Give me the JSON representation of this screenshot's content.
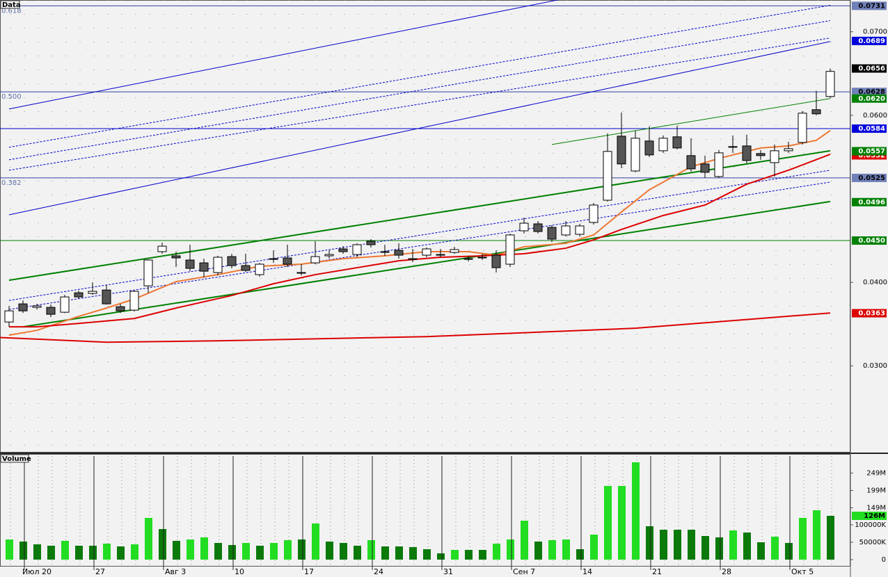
{
  "chart_data": [
    {
      "type": "candlestick",
      "title": "Data",
      "categories": [
        null,
        "Июл 20",
        null,
        null,
        null,
        null,
        "27",
        null,
        null,
        null,
        null,
        "Авг 3",
        null,
        null,
        null,
        null,
        "10",
        null,
        null,
        null,
        null,
        "17",
        null,
        null,
        null,
        null,
        "24",
        null,
        null,
        null,
        null,
        "31",
        null,
        null,
        null,
        null,
        "Сен 7",
        null,
        null,
        null,
        null,
        "14",
        null,
        null,
        null,
        null,
        "21",
        null,
        null,
        null,
        null,
        "28",
        null,
        null,
        null,
        null,
        "Окт 5",
        null,
        null,
        null
      ],
      "open": [
        0.03525,
        0.03742,
        0.037,
        0.037,
        0.03642,
        0.03875,
        0.03867,
        0.03908,
        0.03708,
        0.03667,
        0.03958,
        0.04367,
        0.04317,
        0.04267,
        0.04233,
        0.04117,
        0.04308,
        0.042,
        0.04092,
        0.04275,
        0.04292,
        0.04117,
        0.04233,
        0.04317,
        0.044,
        0.04333,
        0.04492,
        0.04367,
        0.04383,
        0.04283,
        0.04325,
        0.04333,
        0.04358,
        0.04283,
        0.043,
        0.04325,
        0.04217,
        0.04617,
        0.047,
        0.04658,
        0.04567,
        0.04575,
        0.04717,
        0.04983,
        0.0575,
        0.05333,
        0.05692,
        0.05575,
        0.05742,
        0.05517,
        0.05417,
        0.05267,
        0.05625,
        0.05633,
        0.05542,
        0.05433,
        0.05575,
        0.05675,
        0.06067,
        0.06225
      ],
      "high": [
        0.03717,
        0.03783,
        0.03742,
        0.03733,
        0.0385,
        0.039,
        0.04,
        0.03967,
        0.03742,
        0.039,
        0.04275,
        0.04475,
        0.04367,
        0.0445,
        0.04283,
        0.04317,
        0.04342,
        0.04342,
        0.04233,
        0.04383,
        0.0445,
        0.04217,
        0.04492,
        0.04383,
        0.04433,
        0.04467,
        0.04517,
        0.0445,
        0.04467,
        0.044,
        0.04417,
        0.044,
        0.04425,
        0.04317,
        0.04342,
        0.04383,
        0.04583,
        0.04775,
        0.04733,
        0.04683,
        0.04733,
        0.047,
        0.0495,
        0.05783,
        0.06033,
        0.05817,
        0.05867,
        0.05758,
        0.05875,
        0.05725,
        0.05517,
        0.05583,
        0.05758,
        0.05767,
        0.05583,
        0.0565,
        0.05683,
        0.0605,
        0.06292,
        0.06558
      ],
      "low": [
        0.03467,
        0.03633,
        0.03675,
        0.03583,
        0.03633,
        0.038,
        0.0385,
        0.03733,
        0.03633,
        0.0365,
        0.03875,
        0.04342,
        0.04183,
        0.04133,
        0.04058,
        0.04083,
        0.04167,
        0.04125,
        0.04067,
        0.04233,
        0.04183,
        0.04083,
        0.04217,
        0.04283,
        0.04342,
        0.043,
        0.04417,
        0.04317,
        0.04283,
        0.04242,
        0.043,
        0.043,
        0.04342,
        0.0425,
        0.04267,
        0.04117,
        0.04183,
        0.04583,
        0.04583,
        0.04483,
        0.0455,
        0.0455,
        0.04692,
        0.04967,
        0.05367,
        0.05317,
        0.055,
        0.0555,
        0.05592,
        0.05325,
        0.0525,
        0.0525,
        0.0555,
        0.05425,
        0.05467,
        0.05267,
        0.0555,
        0.0565,
        0.06,
        0.06208
      ],
      "close": [
        0.03658,
        0.03658,
        0.03717,
        0.03617,
        0.03825,
        0.03825,
        0.03892,
        0.03742,
        0.03658,
        0.03892,
        0.04267,
        0.04433,
        0.04292,
        0.04167,
        0.04133,
        0.043,
        0.042,
        0.04142,
        0.04217,
        0.04283,
        0.04217,
        0.04117,
        0.04308,
        0.04333,
        0.04367,
        0.0445,
        0.0445,
        0.04367,
        0.04325,
        0.04283,
        0.044,
        0.04333,
        0.04392,
        0.04283,
        0.043,
        0.04175,
        0.04567,
        0.04708,
        0.04608,
        0.04517,
        0.04675,
        0.04675,
        0.04925,
        0.05567,
        0.05417,
        0.05725,
        0.05525,
        0.05725,
        0.05608,
        0.05358,
        0.05317,
        0.0555,
        0.05617,
        0.05458,
        0.05517,
        0.05575,
        0.056,
        0.06025,
        0.06017,
        0.06525
      ],
      "up_color": "#ffffff",
      "down_color": "#555555",
      "ylim": [
        0.0197,
        0.0738
      ],
      "yticks": [
        {
          "value": 0.07,
          "label": "0.0700"
        },
        {
          "value": 0.06,
          "label": "0.0600"
        },
        {
          "value": 0.04,
          "label": "0.0400"
        },
        {
          "value": 0.03,
          "label": "0.0300"
        }
      ],
      "fib_levels": [
        {
          "value": 0.0731,
          "label": "0.618"
        },
        {
          "value": 0.0628,
          "label": "0.500"
        },
        {
          "value": 0.0525,
          "label": "0.382"
        }
      ],
      "markers": [
        {
          "value": 0.0731,
          "label": "0.0731",
          "color": "#7080b8",
          "text_color": "#000000",
          "hline": "#3040a0"
        },
        {
          "value": 0.0689,
          "label": "0.0689",
          "color": "#0000dd",
          "text_color": "#ffffff"
        },
        {
          "value": 0.0656,
          "label": "0.0656",
          "color": "#000000",
          "text_color": "#ffffff"
        },
        {
          "value": 0.0628,
          "label": "0.0628",
          "color": "#7080b8",
          "text_color": "#000000",
          "hline": "#3040a0"
        },
        {
          "value": 0.062,
          "label": "0.0620",
          "color": "#008000",
          "text_color": "#ffffff"
        },
        {
          "value": 0.0584,
          "label": "0.0584",
          "color": "#0000dd",
          "text_color": "#ffffff",
          "hline": "#0000cc"
        },
        {
          "value": 0.0552,
          "label": "0.0552",
          "color": "#dd0000",
          "text_color": "#ffffff"
        },
        {
          "value": 0.0557,
          "label": "0.0557",
          "color": "#008000",
          "text_color": "#ffffff"
        },
        {
          "value": 0.0525,
          "label": "0.0525",
          "color": "#7080b8",
          "text_color": "#000000",
          "hline": "#3040a0"
        },
        {
          "value": 0.0496,
          "label": "0.0496",
          "color": "#008000",
          "text_color": "#ffffff"
        },
        {
          "value": 0.045,
          "label": "0.0450",
          "color": "#008000",
          "text_color": "#ffffff",
          "hline": "#008000"
        },
        {
          "value": 0.0363,
          "label": "0.0363",
          "color": "#dd0000",
          "text_color": "#ffffff"
        }
      ],
      "overlays": [
        {
          "color": "#0000cc",
          "width": 1,
          "dash": false,
          "points": [
            [
              0,
              0.06075
            ],
            [
              39.5,
              0.07383
            ]
          ]
        },
        {
          "color": "#0000cc",
          "width": 1,
          "dash": false,
          "points": [
            [
              0,
              0.04808
            ],
            [
              59,
              0.06883
            ]
          ]
        },
        {
          "color": "#0000cc",
          "width": 1,
          "dash": true,
          "points": [
            [
              0,
              0.05617
            ],
            [
              59,
              0.07317
            ]
          ]
        },
        {
          "color": "#0000cc",
          "width": 1,
          "dash": true,
          "points": [
            [
              0,
              0.05467
            ],
            [
              59,
              0.07133
            ]
          ]
        },
        {
          "color": "#0000cc",
          "width": 1,
          "dash": true,
          "points": [
            [
              0,
              0.05342
            ],
            [
              59,
              0.06925
            ]
          ]
        },
        {
          "color": "#0000cc",
          "width": 1,
          "dash": true,
          "points": [
            [
              0,
              0.03783
            ],
            [
              59,
              0.05342
            ]
          ]
        },
        {
          "color": "#0000cc",
          "width": 1,
          "dash": true,
          "points": [
            [
              0,
              0.03675
            ],
            [
              59,
              0.052
            ]
          ]
        },
        {
          "color": "#008000",
          "width": 2,
          "dash": false,
          "points": [
            [
              0,
              0.04025
            ],
            [
              59,
              0.05575
            ]
          ]
        },
        {
          "color": "#008000",
          "width": 2,
          "dash": false,
          "points": [
            [
              1,
              0.03467
            ],
            [
              59,
              0.04967
            ]
          ]
        },
        {
          "color": "#008000",
          "width": 1,
          "dash": false,
          "points": [
            [
              39,
              0.0565
            ],
            [
              59,
              0.062
            ]
          ]
        },
        {
          "color": "#ee7733",
          "width": 2,
          "dash": false,
          "points": [
            [
              0,
              0.03367
            ],
            [
              2,
              0.03425
            ],
            [
              5,
              0.03592
            ],
            [
              7,
              0.03692
            ],
            [
              9,
              0.038
            ],
            [
              12,
              0.04008
            ],
            [
              15,
              0.04092
            ],
            [
              18,
              0.04192
            ],
            [
              21,
              0.04217
            ],
            [
              24,
              0.04283
            ],
            [
              27,
              0.04317
            ],
            [
              30,
              0.04367
            ],
            [
              33,
              0.04367
            ],
            [
              35,
              0.04325
            ],
            [
              37,
              0.04425
            ],
            [
              40,
              0.04467
            ],
            [
              42,
              0.04567
            ],
            [
              44,
              0.04842
            ],
            [
              46,
              0.05108
            ],
            [
              49,
              0.05383
            ],
            [
              51,
              0.05483
            ],
            [
              54,
              0.05608
            ],
            [
              56,
              0.05633
            ],
            [
              58,
              0.057
            ],
            [
              59,
              0.05817
            ]
          ]
        },
        {
          "color": "#dd0000",
          "width": 2,
          "dash": false,
          "points": [
            [
              0,
              0.03467
            ],
            [
              2,
              0.03467
            ],
            [
              5,
              0.03508
            ],
            [
              9,
              0.03567
            ],
            [
              12,
              0.03692
            ],
            [
              16,
              0.03842
            ],
            [
              19,
              0.03983
            ],
            [
              22,
              0.04092
            ],
            [
              25,
              0.04175
            ],
            [
              28,
              0.04258
            ],
            [
              31,
              0.043
            ],
            [
              34,
              0.04317
            ],
            [
              37,
              0.04342
            ],
            [
              40,
              0.04408
            ],
            [
              42,
              0.04508
            ],
            [
              44,
              0.04633
            ],
            [
              47,
              0.048
            ],
            [
              50,
              0.04925
            ],
            [
              53,
              0.05175
            ],
            [
              56,
              0.05342
            ],
            [
              59,
              0.05533
            ]
          ]
        },
        {
          "color": "#dd0000",
          "width": 2,
          "dash": false,
          "points": [
            [
              -1,
              0.03342
            ],
            [
              7,
              0.03283
            ],
            [
              15,
              0.033
            ],
            [
              30,
              0.0335
            ],
            [
              45,
              0.0345
            ],
            [
              59,
              0.03633
            ]
          ]
        }
      ]
    },
    {
      "type": "bar",
      "title": "Volume",
      "values": [
        58000000,
        52000000,
        44000000,
        40000000,
        54000000,
        40000000,
        40000000,
        46000000,
        38000000,
        44000000,
        120000000,
        88000000,
        54000000,
        58000000,
        64000000,
        48000000,
        42000000,
        48000000,
        40000000,
        48000000,
        56000000,
        58000000,
        104000000,
        52000000,
        48000000,
        40000000,
        56000000,
        38000000,
        38000000,
        36000000,
        30000000,
        18000000,
        28000000,
        28000000,
        28000000,
        46000000,
        58000000,
        112000000,
        52000000,
        56000000,
        58000000,
        30000000,
        72000000,
        212000000,
        212000000,
        280000000,
        96000000,
        86000000,
        86000000,
        86000000,
        68000000,
        64000000,
        84000000,
        78000000,
        50000000,
        66000000,
        48000000,
        120000000,
        142000000,
        126000000
      ],
      "colors": [
        "#22dd22",
        "#0b7a0b",
        "#0b7a0b",
        "#0b7a0b",
        "#22dd22",
        "#0b7a0b",
        "#0b7a0b",
        "#22dd22",
        "#0b7a0b",
        "#22dd22",
        "#22dd22",
        "#0b7a0b",
        "#0b7a0b",
        "#22dd22",
        "#22dd22",
        "#0b7a0b",
        "#0b7a0b",
        "#22dd22",
        "#0b7a0b",
        "#22dd22",
        "#22dd22",
        "#0b7a0b",
        "#22dd22",
        "#0b7a0b",
        "#0b7a0b",
        "#0b7a0b",
        "#22dd22",
        "#0b7a0b",
        "#0b7a0b",
        "#0b7a0b",
        "#0b7a0b",
        "#0b7a0b",
        "#22dd22",
        "#0b7a0b",
        "#0b7a0b",
        "#22dd22",
        "#22dd22",
        "#22dd22",
        "#0b7a0b",
        "#22dd22",
        "#22dd22",
        "#0b7a0b",
        "#22dd22",
        "#22dd22",
        "#22dd22",
        "#22dd22",
        "#0b7a0b",
        "#0b7a0b",
        "#0b7a0b",
        "#0b7a0b",
        "#0b7a0b",
        "#0b7a0b",
        "#22dd22",
        "#0b7a0b",
        "#0b7a0b",
        "#22dd22",
        "#0b7a0b",
        "#22dd22",
        "#22dd22",
        "#0b7a0b"
      ],
      "ylim": [
        0,
        298000000
      ],
      "yticks": [
        {
          "value": 249000000,
          "label": "249M"
        },
        {
          "value": 199000000,
          "label": "199M"
        },
        {
          "value": 149000000,
          "label": "149M"
        },
        {
          "value": 100000000,
          "label": "100000K"
        },
        {
          "value": 50000000,
          "label": "50000K"
        },
        0
      ],
      "markers": [
        {
          "value": 126000000,
          "label": "126M",
          "color": "#22dd22",
          "text_color": "#000000"
        }
      ]
    }
  ]
}
